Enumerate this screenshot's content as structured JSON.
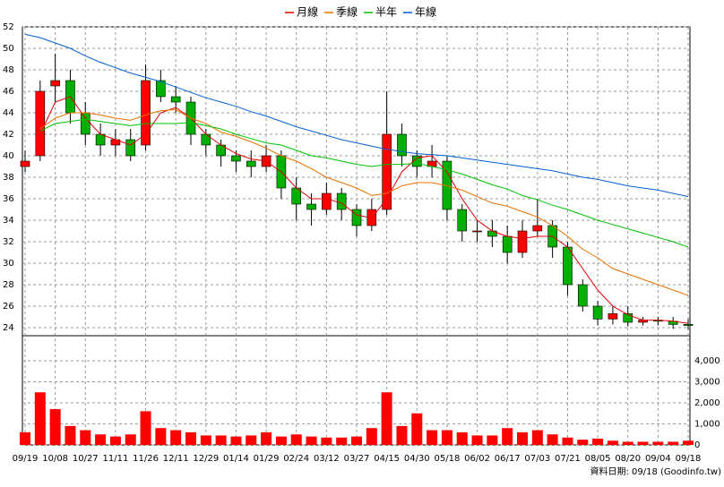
{
  "chart_data": [
    {
      "type": "candlestick",
      "categories": [
        "09/19",
        null,
        "10/08",
        null,
        "10/27",
        null,
        "11/11",
        null,
        "11/26",
        null,
        "12/11",
        null,
        "12/29",
        null,
        "01/14",
        null,
        "01/29",
        null,
        "02/24",
        null,
        "03/12",
        null,
        "03/27",
        null,
        "04/15",
        null,
        "04/30",
        null,
        "05/18",
        null,
        "06/02",
        null,
        "06/17",
        null,
        "07/03",
        null,
        "07/21",
        null,
        "08/05",
        null,
        "08/20",
        null,
        "09/04",
        null,
        "09/18"
      ],
      "open": [
        39,
        40,
        46.5,
        47,
        44,
        42,
        41,
        41.5,
        41,
        47,
        45.5,
        45,
        42,
        41,
        40,
        39.5,
        39,
        40,
        37,
        35.5,
        35,
        36.5,
        35,
        33.5,
        35,
        42,
        40,
        39,
        39.5,
        35,
        33,
        33,
        32.5,
        31,
        33,
        33.5,
        31.5,
        28,
        26,
        24.8,
        25.3,
        24.5,
        24.7,
        24.6,
        24.3
      ],
      "high": [
        40.5,
        47,
        49.5,
        48,
        45,
        43,
        42.5,
        42.5,
        48.5,
        48,
        46.5,
        45.5,
        42.5,
        41.5,
        40.5,
        40.5,
        41,
        40.5,
        38,
        36.5,
        37.5,
        37,
        35.5,
        36,
        46,
        43,
        40.5,
        41,
        40,
        35.5,
        34,
        34,
        33.5,
        34,
        36,
        34,
        32,
        28.5,
        26.5,
        26,
        26,
        25,
        25,
        25,
        24.8
      ],
      "low": [
        38.5,
        39.5,
        45,
        43,
        41,
        40,
        40,
        39.5,
        40.5,
        45,
        44,
        41,
        40,
        39,
        38.5,
        38,
        38.5,
        36,
        34,
        33.5,
        34.5,
        34,
        32.5,
        33,
        34.5,
        39,
        38,
        38,
        34,
        32,
        32,
        31.5,
        30,
        30.5,
        32.5,
        30.5,
        27,
        25.5,
        24.2,
        24.3,
        24.1,
        24.2,
        24.2,
        23.9,
        23.8
      ],
      "close": [
        39.5,
        46,
        47,
        44,
        42,
        41,
        41.5,
        40,
        47,
        45.5,
        45,
        42,
        41,
        40,
        39.5,
        39,
        40,
        37,
        35.5,
        35,
        36.5,
        35,
        33.5,
        35,
        42,
        40,
        39,
        39.5,
        35,
        33,
        33,
        32.5,
        31,
        33,
        33.5,
        31.5,
        28,
        26,
        24.8,
        25.3,
        24.5,
        24.7,
        24.6,
        24.3,
        24.2
      ],
      "up_color": "#ff0000",
      "down_color": "#00b000",
      "series": [
        {
          "name": "月線",
          "color": "#e00000",
          "values": [
            null,
            42,
            45,
            45.5,
            43.5,
            42,
            41.5,
            41,
            42,
            44,
            44.5,
            43.5,
            42,
            41,
            40.2,
            39.7,
            39.5,
            38.5,
            37,
            36,
            36,
            35.6,
            34.5,
            34.2,
            36,
            38.5,
            39.8,
            40,
            38.5,
            36,
            34,
            33,
            32.5,
            32.3,
            32.5,
            32.5,
            31.5,
            29.5,
            27.5,
            26,
            25.2,
            24.7,
            24.7,
            24.6,
            24.4
          ]
        },
        {
          "name": "季線",
          "color": "#e87000",
          "values": [
            null,
            42.5,
            43.5,
            44,
            44,
            43.8,
            43.5,
            43.3,
            43.8,
            44.2,
            44.3,
            43.5,
            43,
            42.2,
            41.8,
            41.3,
            40.7,
            40,
            39.5,
            38.8,
            38,
            37.5,
            37,
            36.3,
            36.5,
            37.2,
            37.5,
            37.5,
            37.2,
            36.8,
            36.2,
            35.6,
            35.3,
            34.8,
            34.3,
            33.5,
            32.5,
            31.3,
            30.5,
            29.5,
            29,
            28.5,
            28,
            27.5,
            27
          ]
        },
        {
          "name": "半年",
          "color": "#00c000",
          "values": [
            null,
            42.3,
            43,
            43.2,
            43.4,
            43.2,
            43,
            42.8,
            43,
            43,
            43,
            43.1,
            42.8,
            42.5,
            42,
            41.6,
            41.2,
            41,
            40.5,
            40,
            39.8,
            39.5,
            39.2,
            39,
            39.2,
            39.2,
            39.3,
            39,
            38.7,
            38.3,
            37.8,
            37.3,
            36.9,
            36.3,
            35.9,
            35.4,
            35,
            34.5,
            34,
            33.6,
            33.2,
            32.8,
            32.4,
            32,
            31.5
          ]
        },
        {
          "name": "年線",
          "color": "#0060d0",
          "values": [
            51.3,
            51,
            50.5,
            50,
            49.3,
            48.7,
            48.2,
            47.7,
            47.3,
            46.9,
            46.4,
            45.9,
            45.4,
            45,
            44.6,
            44.1,
            43.7,
            43.2,
            42.7,
            42.3,
            41.9,
            41.5,
            41.2,
            40.9,
            40.6,
            40.4,
            40.2,
            40.1,
            40,
            39.8,
            39.6,
            39.4,
            39.2,
            39,
            38.8,
            38.6,
            38.3,
            38,
            37.8,
            37.5,
            37.2,
            37,
            36.8,
            36.5,
            36.2
          ]
        }
      ],
      "ylim": [
        23.25,
        52
      ],
      "yticks": [
        24,
        26,
        28,
        30,
        32,
        34,
        36,
        38,
        40,
        42,
        44,
        46,
        48,
        50,
        52
      ],
      "grid": true
    },
    {
      "type": "bar",
      "color": "#ff0000",
      "values": [
        600,
        2500,
        1700,
        900,
        700,
        500,
        400,
        500,
        1600,
        800,
        700,
        600,
        450,
        450,
        400,
        450,
        600,
        400,
        500,
        400,
        350,
        350,
        400,
        800,
        2500,
        900,
        1500,
        700,
        700,
        600,
        450,
        450,
        800,
        600,
        700,
        500,
        350,
        250,
        300,
        200,
        150,
        150,
        150,
        150,
        200
      ],
      "ylim": [
        0,
        5190
      ],
      "yticks": [
        0,
        {
          "value": 1000,
          "label": "1,000"
        },
        {
          "value": 2000,
          "label": "2,000"
        },
        {
          "value": 3000,
          "label": "3,000"
        },
        {
          "value": 4000,
          "label": "4,000"
        }
      ],
      "grid": true
    }
  ],
  "source": "資料日期: 09/18 (Goodinfo.tw)"
}
